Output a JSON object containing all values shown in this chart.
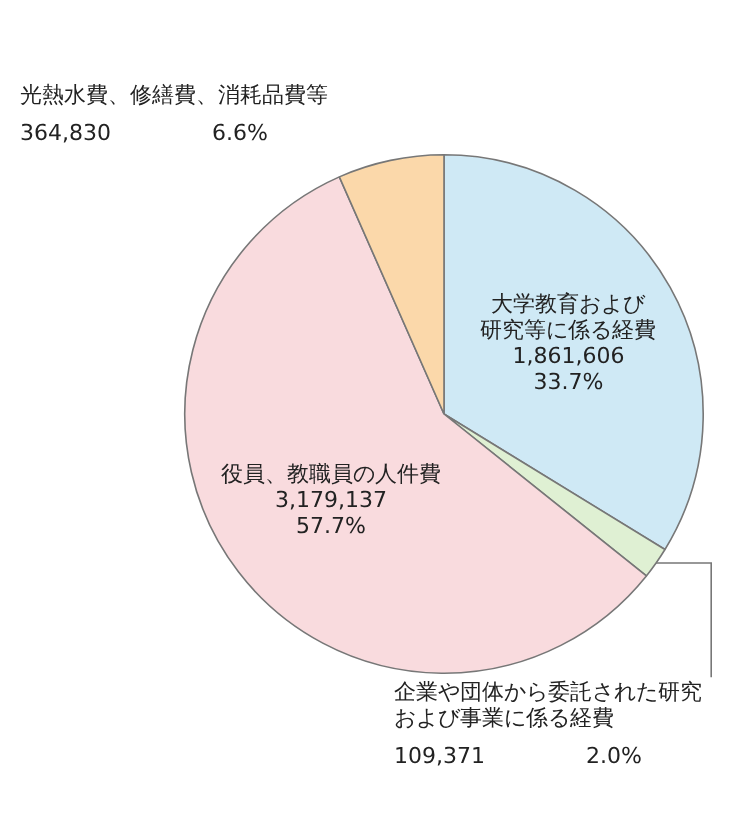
{
  "chart_data": {
    "type": "pie",
    "categories": [
      "大学教育および研究等に係る経費",
      "企業や団体から委託された研究および事業に係る経費",
      "役員、教職員の人件費",
      "光熱水費、修繕費、消耗品費等"
    ],
    "values": [
      1861606,
      109371,
      3179137,
      364830
    ],
    "colors": [
      "#cfe9f5",
      "#dff0d3",
      "#f9dbde",
      "#fbd8aa"
    ],
    "value_labels": [
      "1,861,606\n33.7%",
      "109,371\n2.0%",
      "3,179,137\n57.7%",
      "364,830\n6.6%"
    ],
    "legend": false
  }
}
